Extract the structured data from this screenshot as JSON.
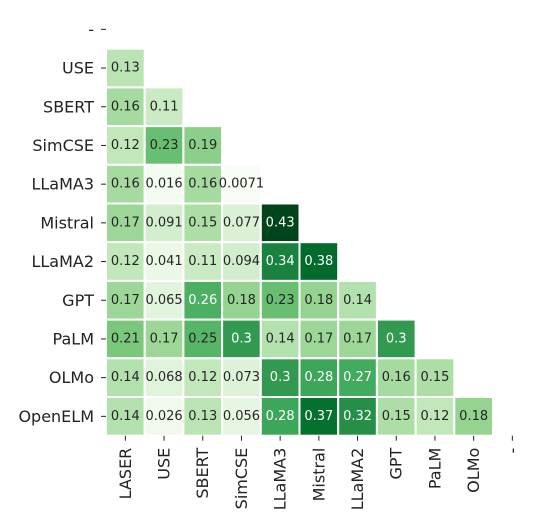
{
  "chart_data": {
    "type": "heatmap",
    "title": "",
    "xlabel": "",
    "ylabel": "",
    "x_categories": [
      "LASER",
      "USE",
      "SBERT",
      "SimCSE",
      "LLaMA3",
      "Mistral",
      "LLaMA2",
      "GPT",
      "PaLM",
      "OLMo",
      "-"
    ],
    "y_categories": [
      "-",
      "USE",
      "SBERT",
      "SimCSE",
      "LLaMA3",
      "Mistral",
      "LLaMA2",
      "GPT",
      "PaLM",
      "OLMo",
      "OpenELM"
    ],
    "matrix": [
      [],
      [
        "0.13"
      ],
      [
        "0.16",
        "0.11"
      ],
      [
        "0.12",
        "0.23",
        "0.19"
      ],
      [
        "0.16",
        "0.016",
        "0.16",
        "0.0071"
      ],
      [
        "0.17",
        "0.091",
        "0.15",
        "0.077",
        "0.43"
      ],
      [
        "0.12",
        "0.041",
        "0.11",
        "0.094",
        "0.34",
        "0.38"
      ],
      [
        "0.17",
        "0.065",
        "0.26",
        "0.18",
        "0.23",
        "0.18",
        "0.14"
      ],
      [
        "0.21",
        "0.17",
        "0.25",
        "0.3",
        "0.14",
        "0.17",
        "0.17",
        "0.3"
      ],
      [
        "0.14",
        "0.068",
        "0.12",
        "0.073",
        "0.3",
        "0.28",
        "0.27",
        "0.16",
        "0.15"
      ],
      [
        "0.14",
        "0.026",
        "0.13",
        "0.056",
        "0.28",
        "0.37",
        "0.32",
        "0.15",
        "0.12",
        "0.18"
      ]
    ],
    "colormap": "Greens",
    "vmin": 0.0071,
    "vmax": 0.43,
    "mask": "upper-triangle",
    "colorbar": false
  }
}
